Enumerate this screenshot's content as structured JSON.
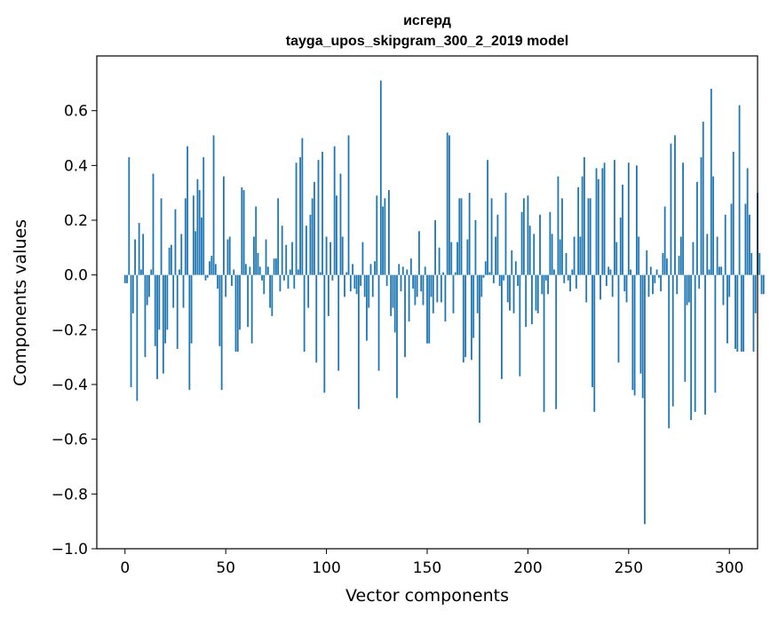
{
  "chart_data": {
    "type": "bar",
    "title_line1": "исгерд",
    "title_line2": "tayga_upos_skipgram_300_2_2019 model",
    "xlabel": "Vector components",
    "ylabel": "Components values",
    "xlim": [
      -14,
      314
    ],
    "ylim": [
      -1.0,
      0.8
    ],
    "xticks": [
      0,
      50,
      100,
      150,
      200,
      250,
      300
    ],
    "xtick_labels": [
      "0",
      "50",
      "100",
      "150",
      "200",
      "250",
      "300"
    ],
    "yticks": [
      -1.0,
      -0.8,
      -0.6,
      -0.4,
      -0.2,
      0.0,
      0.2,
      0.4,
      0.6
    ],
    "ytick_labels": [
      "−1.0",
      "−0.8",
      "−0.6",
      "−0.4",
      "−0.2",
      "0.0",
      "0.2",
      "0.4",
      "0.6"
    ],
    "bar_color": "#1f77b4",
    "grid": false,
    "values": [
      -0.03,
      -0.03,
      0.43,
      -0.41,
      -0.14,
      0.13,
      -0.46,
      0.19,
      0.02,
      0.15,
      -0.3,
      -0.11,
      -0.08,
      0.02,
      0.37,
      -0.26,
      -0.38,
      -0.2,
      0.28,
      -0.36,
      -0.25,
      -0.2,
      0.1,
      0.11,
      -0.12,
      0.24,
      -0.27,
      0.02,
      0.15,
      -0.12,
      0.28,
      0.47,
      -0.42,
      -0.25,
      0.29,
      0.16,
      0.35,
      0.31,
      0.21,
      0.43,
      -0.02,
      -0.01,
      0.05,
      0.07,
      0.51,
      0.04,
      -0.05,
      -0.26,
      -0.42,
      0.36,
      -0.08,
      0.13,
      0.14,
      -0.04,
      0.02,
      -0.28,
      -0.28,
      -0.2,
      0.32,
      0.31,
      0.04,
      -0.19,
      0.03,
      -0.25,
      0.14,
      0.25,
      0.08,
      0.03,
      -0.02,
      -0.07,
      0.13,
      0.03,
      -0.12,
      -0.15,
      0.06,
      0.06,
      0.28,
      -0.06,
      0.18,
      -0.02,
      0.11,
      -0.05,
      0.02,
      0.12,
      -0.05,
      0.41,
      0.02,
      0.43,
      0.5,
      -0.28,
      0.18,
      -0.12,
      0.22,
      0.28,
      0.34,
      -0.32,
      0.42,
      0.01,
      0.45,
      -0.43,
      0.14,
      -0.15,
      0.12,
      -0.02,
      0.47,
      0.29,
      -0.35,
      0.37,
      0.14,
      -0.08,
      0.01,
      0.51,
      -0.06,
      0.04,
      -0.05,
      -0.07,
      -0.49,
      -0.04,
      0.12,
      -0.08,
      -0.24,
      -0.12,
      0.04,
      -0.08,
      0.05,
      0.29,
      -0.35,
      0.71,
      0.25,
      0.28,
      -0.04,
      0.31,
      -0.15,
      -0.12,
      -0.21,
      -0.45,
      0.04,
      -0.06,
      0.03,
      -0.3,
      0.02,
      -0.17,
      0.06,
      -0.05,
      -0.11,
      -0.08,
      0.16,
      -0.06,
      -0.11,
      0.03,
      -0.25,
      -0.25,
      -0.08,
      -0.14,
      0.2,
      -0.1,
      0.1,
      -0.1,
      0.01,
      -0.17,
      0.52,
      0.51,
      0.12,
      -0.14,
      0.01,
      0.12,
      0.28,
      0.28,
      -0.32,
      -0.3,
      0.13,
      0.3,
      -0.31,
      -0.23,
      0.2,
      -0.14,
      -0.54,
      -0.08,
      -0.01,
      0.05,
      0.42,
      0.01,
      0.28,
      -0.03,
      0.14,
      0.22,
      -0.04,
      -0.38,
      -0.02,
      0.3,
      -0.1,
      -0.13,
      0.09,
      -0.14,
      0.05,
      -0.04,
      -0.37,
      0.23,
      0.28,
      -0.19,
      0.29,
      0.18,
      -0.18,
      0.15,
      -0.13,
      -0.14,
      0.22,
      -0.07,
      -0.5,
      -0.02,
      -0.07,
      0.23,
      0.15,
      0.02,
      -0.49,
      0.36,
      0.13,
      0.28,
      -0.03,
      0.08,
      -0.02,
      -0.06,
      0.02,
      0.14,
      -0.05,
      0.32,
      0.14,
      0.36,
      0.43,
      -0.1,
      0.28,
      0.28,
      -0.41,
      -0.5,
      0.39,
      0.35,
      -0.09,
      0.39,
      0.41,
      -0.04,
      0.03,
      0.02,
      -0.08,
      0.42,
      0.12,
      -0.32,
      0.21,
      0.33,
      -0.06,
      -0.1,
      0.41,
      0.02,
      -0.42,
      -0.44,
      0.4,
      0.14,
      -0.36,
      -0.45,
      -0.91,
      0.09,
      -0.08,
      0.03,
      -0.07,
      -0.03,
      0.02,
      -0.01,
      -0.06,
      0.08,
      0.25,
      0.06,
      -0.56,
      0.48,
      -0.48,
      0.51,
      -0.07,
      0.07,
      0.14,
      0.41,
      -0.39,
      -0.11,
      -0.1,
      -0.53,
      0.12,
      -0.5,
      0.34,
      -0.05,
      0.43,
      0.56,
      -0.51,
      0.15,
      0.02,
      0.68,
      0.36,
      -0.43,
      0.14,
      0.03,
      0.03,
      -0.11,
      0.22,
      -0.25,
      -0.08,
      0.26,
      0.45,
      -0.27,
      -0.28,
      0.62,
      -0.28,
      -0.28,
      0.26,
      0.39,
      0.22,
      0.08,
      -0.28,
      -0.14,
      0.3,
      0.08,
      -0.07,
      -0.07
    ]
  }
}
